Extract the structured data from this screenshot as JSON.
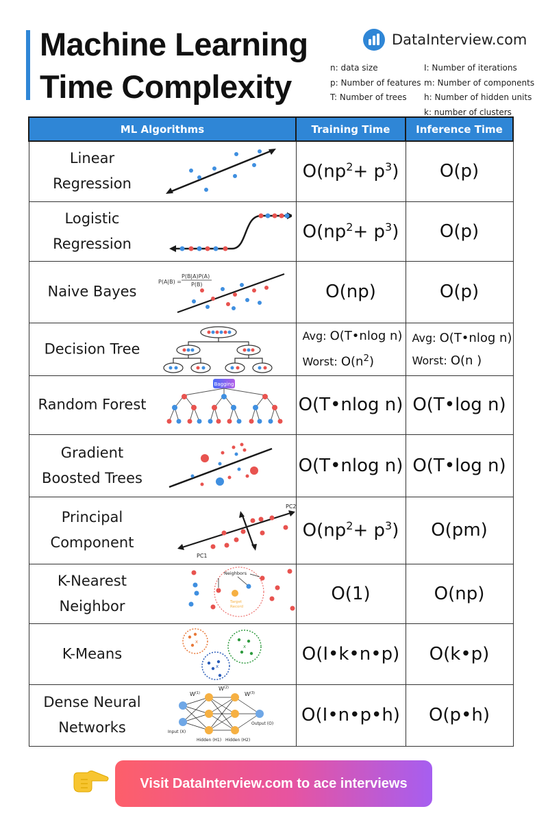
{
  "header": {
    "title_line1": "Machine Learning",
    "title_line2": "Time Complexity",
    "brand": "DataInterview.com",
    "accent_color": "#2f86d6"
  },
  "legend": {
    "left": [
      "n: data size",
      "p: Number of features",
      "T: Number of trees"
    ],
    "right": [
      "I: Number of iterations",
      "m: Number of components",
      "h: Number of hidden units",
      "k: number of clusters"
    ]
  },
  "table": {
    "headers": [
      "ML Algorithms",
      "Training Time",
      "Inference Time"
    ],
    "rows": [
      {
        "name_lines": [
          "Linear",
          "Regression"
        ]
      },
      {
        "name_lines": [
          "Logistic",
          "Regression"
        ]
      },
      {
        "name_lines": [
          "Naive Bayes"
        ]
      },
      {
        "name_lines": [
          "Decision Tree"
        ],
        "train_avg_label": "Avg:",
        "train_avg": "O(T•nlog n)",
        "train_worst_label": "Worst:",
        "train_worst": "O(n",
        "train_worst_sup": "2",
        "train_worst_end": ")",
        "infer_avg_label": "Avg:",
        "infer_avg": "O(T•nlog n)",
        "infer_worst_label": "Worst:",
        "infer_worst": "O(n )"
      },
      {
        "name_lines": [
          "Random Forest"
        ],
        "train": "O(T•nlog n)",
        "infer": "O(T•log n)"
      },
      {
        "name_lines": [
          "Gradient",
          "Boosted Trees"
        ],
        "train": "O(T•nlog n)",
        "infer": "O(T•log n)"
      },
      {
        "name_lines": [
          "Principal",
          "Component"
        ]
      },
      {
        "name_lines": [
          "K-Nearest",
          "Neighbor"
        ],
        "train": "O(1)",
        "infer": "O(np)"
      },
      {
        "name_lines": [
          "K-Means"
        ],
        "train": "O(I•k•n•p)",
        "infer": "O(k•p)"
      },
      {
        "name_lines": [
          "Dense Neural",
          "Networks"
        ],
        "train": "O(I•n•p•h)",
        "infer": "O(p•h)"
      }
    ],
    "lr": {
      "train_a": "O(np",
      "train_sup1": "2",
      "train_b": "+ p",
      "train_sup2": "3",
      "train_c": ")",
      "infer": "O(p)"
    },
    "logr": {
      "train_a": "O(np",
      "train_sup1": "2",
      "train_b": "+ p",
      "train_sup2": "3",
      "train_c": ")",
      "infer": "O(p)"
    },
    "nb": {
      "train": "O(np)",
      "infer": "O(p)"
    },
    "pca": {
      "train_a": "O(np",
      "train_sup1": "2",
      "train_b": "+ p",
      "train_sup2": "3",
      "train_c": ")",
      "infer": "O(pm)"
    }
  },
  "figures": {
    "naive_bayes_formula_left": "P(A|B) =",
    "naive_bayes_formula_num": "P(B|A)P(A)",
    "naive_bayes_formula_den": "P(B)",
    "bagging": "Bagging",
    "pc1": "PC1",
    "pc2": "PC2",
    "knn_neighbors": "Neighbors",
    "knn_target1": "Target",
    "knn_target2": "Record",
    "nn_w1": "W",
    "nn_w1_sup": "(1)",
    "nn_w2": "W",
    "nn_w2_sup": "(2)",
    "nn_w3": "W",
    "nn_w3_sup": "(3)",
    "nn_input": "Input (X)",
    "nn_hidden1": "Hidden (H1)",
    "nn_hidden2": "Hidden (H2)",
    "nn_output": "Output (O)"
  },
  "cta": {
    "label": "Visit DataInterview.com to ace interviews"
  },
  "colors": {
    "red": "#e8534f",
    "blue": "#3f8fe0",
    "header_blue": "#2f86d6"
  }
}
